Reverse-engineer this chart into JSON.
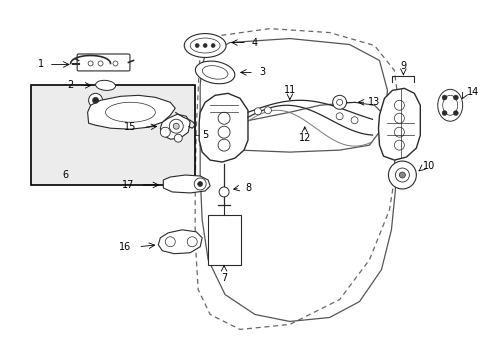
{
  "bg_color": "#ffffff",
  "fig_width": 4.89,
  "fig_height": 3.6,
  "dpi": 100,
  "line_color": "#333333",
  "door_color": "#444444"
}
